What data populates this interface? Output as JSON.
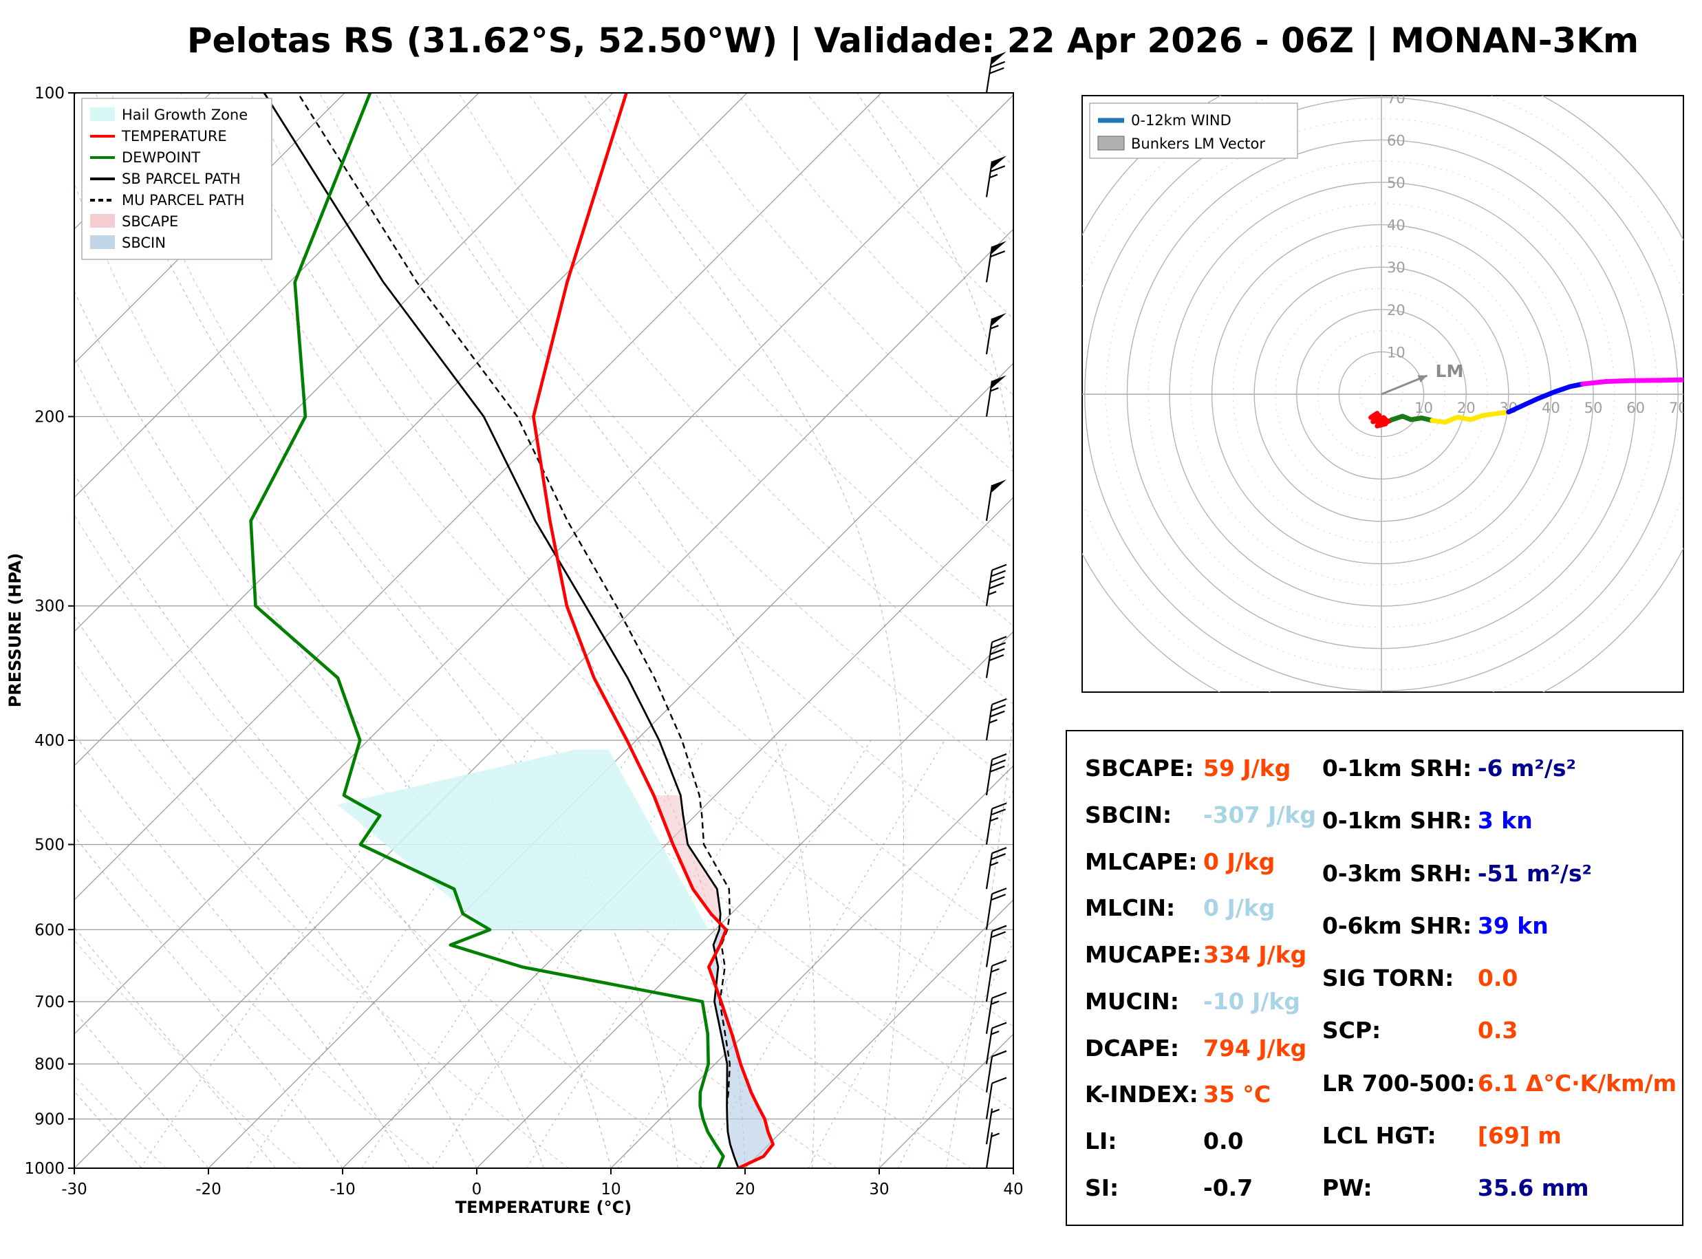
{
  "title": "Pelotas RS (31.62°S, 52.50°W) | Validade: 22 Apr 2026 - 06Z | MONAN-3Km",
  "colors": {
    "temperature": "#ff0000",
    "dewpoint": "#008000",
    "parcel": "#000000",
    "hail_zone": "#d4f6f6",
    "sbcape_fill": "#f3c6cd",
    "sbcin_fill": "#b9d0e6",
    "orange_value": "#ff4500",
    "lightblue_value": "#a8d4e6",
    "darkblue_value": "#00008b",
    "blue_value": "#0000ff",
    "grid": "#999999"
  },
  "chart_data": [
    {
      "type": "line",
      "name": "skewt-sounding",
      "title": "Pelotas RS (31.62°S, 52.50°W) | Validade: 22 Apr 2026 - 06Z | MONAN-3Km",
      "xlabel": "TEMPERATURE (°C)",
      "ylabel": "PRESSURE (HPA)",
      "xlim": [
        -30,
        40
      ],
      "plim": [
        100,
        1000
      ],
      "x_ticks": [
        -30,
        -20,
        -10,
        0,
        10,
        20,
        30,
        40
      ],
      "p_ticks": [
        100,
        200,
        300,
        400,
        500,
        600,
        700,
        800,
        900,
        1000
      ],
      "skew_deg": 45,
      "grid": true,
      "legend_position": "upper left",
      "legend": [
        {
          "label": "Hail Growth Zone",
          "type": "patch",
          "color": "#d4f6f6"
        },
        {
          "label": "TEMPERATURE",
          "type": "line",
          "color": "#ff0000"
        },
        {
          "label": "DEWPOINT",
          "type": "line",
          "color": "#008000"
        },
        {
          "label": "SB PARCEL PATH",
          "type": "line",
          "color": "#000000"
        },
        {
          "label": "MU PARCEL PATH",
          "type": "dashed",
          "color": "#000000"
        },
        {
          "label": "SBCAPE",
          "type": "patch",
          "color": "#f3c6cd"
        },
        {
          "label": "SBCIN",
          "type": "patch",
          "color": "#b9d0e6"
        }
      ],
      "pressure": [
        1000,
        975,
        950,
        925,
        900,
        875,
        850,
        800,
        750,
        700,
        650,
        620,
        600,
        580,
        550,
        500,
        470,
        450,
        400,
        350,
        300,
        250,
        200,
        150,
        100
      ],
      "temperature": [
        19.5,
        20.5,
        20.3,
        19.0,
        17.8,
        16.3,
        14.8,
        11.9,
        9.0,
        5.8,
        2.3,
        1.5,
        0.8,
        -1.5,
        -4.7,
        -9.5,
        -12.5,
        -14.6,
        -20.7,
        -27.8,
        -35.2,
        -42.8,
        -51.8,
        -59.3,
        -69.0
      ],
      "dewpoint": [
        18.0,
        17.5,
        16.0,
        14.5,
        13.2,
        12.0,
        11.0,
        9.5,
        7.2,
        4.4,
        -11.6,
        -18.6,
        -16.8,
        -20.0,
        -22.5,
        -32.8,
        -33.5,
        -37.7,
        -40.6,
        -46.9,
        -58.4,
        -65.1,
        -68.8,
        -79.6,
        -88.1
      ],
      "sb_parcel": [
        19.5,
        18.3,
        17.1,
        16.0,
        15.0,
        14.0,
        13.0,
        10.9,
        8.2,
        5.3,
        3.0,
        1.0,
        0.3,
        -0.8,
        -2.9,
        -8.4,
        -10.9,
        -12.6,
        -18.3,
        -25.3,
        -33.8,
        -43.9,
        -55.5,
        -73.0,
        -96.0
      ],
      "mu_parcel": [
        19.5,
        18.3,
        17.1,
        16.0,
        15.0,
        14.0,
        13.1,
        11.1,
        8.5,
        5.7,
        3.5,
        1.6,
        0.9,
        -0.1,
        -2.0,
        -7.2,
        -9.5,
        -11.2,
        -16.6,
        -23.3,
        -31.5,
        -41.5,
        -53.0,
        -70.5,
        -93.5
      ],
      "hail_growth_zone_pT": [
        [
          459,
          -37.5
        ],
        [
          408,
          -23.9
        ],
        [
          408,
          -21.4
        ],
        [
          600,
          -0.5
        ],
        [
          600,
          -16.9
        ]
      ],
      "wind_barbs": [
        {
          "p": 1000,
          "speed_kt": 5,
          "dir_deg": 100
        },
        {
          "p": 950,
          "speed_kt": 8,
          "dir_deg": 120
        },
        {
          "p": 900,
          "speed_kt": 10,
          "dir_deg": 160
        },
        {
          "p": 850,
          "speed_kt": 12,
          "dir_deg": 200
        },
        {
          "p": 800,
          "speed_kt": 15,
          "dir_deg": 230
        },
        {
          "p": 750,
          "speed_kt": 15,
          "dir_deg": 250
        },
        {
          "p": 700,
          "speed_kt": 18,
          "dir_deg": 260
        },
        {
          "p": 650,
          "speed_kt": 20,
          "dir_deg": 265
        },
        {
          "p": 600,
          "speed_kt": 22,
          "dir_deg": 270
        },
        {
          "p": 550,
          "speed_kt": 25,
          "dir_deg": 270
        },
        {
          "p": 500,
          "speed_kt": 28,
          "dir_deg": 272
        },
        {
          "p": 450,
          "speed_kt": 32,
          "dir_deg": 274
        },
        {
          "p": 400,
          "speed_kt": 35,
          "dir_deg": 275
        },
        {
          "p": 350,
          "speed_kt": 40,
          "dir_deg": 276
        },
        {
          "p": 300,
          "speed_kt": 45,
          "dir_deg": 277
        },
        {
          "p": 250,
          "speed_kt": 50,
          "dir_deg": 278
        },
        {
          "p": 200,
          "speed_kt": 55,
          "dir_deg": 278
        },
        {
          "p": 175,
          "speed_kt": 58,
          "dir_deg": 277
        },
        {
          "p": 150,
          "speed_kt": 60,
          "dir_deg": 276
        },
        {
          "p": 125,
          "speed_kt": 65,
          "dir_deg": 274
        },
        {
          "p": 100,
          "speed_kt": 70,
          "dir_deg": 272
        }
      ]
    },
    {
      "type": "line",
      "name": "hodograph",
      "rings_kt": [
        10,
        20,
        30,
        40,
        50,
        60,
        70,
        80
      ],
      "ring_labels": [
        10,
        20,
        30,
        40,
        50,
        60,
        70
      ],
      "legend": [
        {
          "label": "0-12km WIND",
          "type": "line",
          "color": "#1f77b4"
        },
        {
          "label": "Bunkers LM Vector",
          "type": "patch",
          "color": "#b0b0b0"
        }
      ],
      "lm_label": "LM",
      "lm_vector_uv": [
        10.8,
        4.4
      ],
      "segments": [
        {
          "color": "#ff0000",
          "points": [
            [
              -1,
              -4.5
            ],
            [
              -2.5,
              -5.5
            ],
            [
              -0.5,
              -5
            ],
            [
              -2,
              -6.5
            ],
            [
              0,
              -6
            ],
            [
              -1,
              -7.5
            ],
            [
              1,
              -7
            ],
            [
              0.5,
              -5.5
            ],
            [
              1.5,
              -6.5
            ],
            [
              2.5,
              -6
            ]
          ]
        },
        {
          "color": "#1a7a1a",
          "points": [
            [
              2.5,
              -6
            ],
            [
              5,
              -5.2
            ],
            [
              7,
              -6
            ],
            [
              9.5,
              -5.6
            ],
            [
              12,
              -6.2
            ]
          ]
        },
        {
          "color": "#ffe800",
          "points": [
            [
              12,
              -6.2
            ],
            [
              15,
              -6.6
            ],
            [
              18,
              -5.4
            ],
            [
              21,
              -6
            ],
            [
              24,
              -5
            ],
            [
              27,
              -4.6
            ],
            [
              30,
              -4.2
            ]
          ]
        },
        {
          "color": "#0000ff",
          "points": [
            [
              30,
              -4.2
            ],
            [
              33.5,
              -2.6
            ],
            [
              37,
              -1
            ],
            [
              41,
              0.6
            ],
            [
              44.5,
              1.8
            ],
            [
              47.5,
              2.4
            ]
          ]
        },
        {
          "color": "#ff00ff",
          "points": [
            [
              47.5,
              2.4
            ],
            [
              53,
              3
            ],
            [
              59,
              3.2
            ],
            [
              66,
              3.3
            ],
            [
              72,
              3.4
            ],
            [
              77,
              3.5
            ]
          ]
        }
      ]
    }
  ],
  "stats": {
    "left": [
      {
        "label": "SBCAPE:",
        "value": "59 J/kg",
        "color": "#ff4500"
      },
      {
        "label": "SBCIN:",
        "value": "-307 J/kg",
        "color": "#a8d4e6"
      },
      {
        "label": "MLCAPE:",
        "value": "0 J/kg",
        "color": "#ff4500"
      },
      {
        "label": "MLCIN:",
        "value": "0 J/kg",
        "color": "#a8d4e6"
      },
      {
        "label": "MUCAPE:",
        "value": "334 J/kg",
        "color": "#ff4500"
      },
      {
        "label": "MUCIN:",
        "value": "-10 J/kg",
        "color": "#a8d4e6"
      },
      {
        "label": "DCAPE:",
        "value": "794 J/kg",
        "color": "#ff4500"
      },
      {
        "label": "K-INDEX:",
        "value": "35 °C",
        "color": "#ff4500"
      },
      {
        "label": "LI:",
        "value": "0.0",
        "color": "#000000"
      },
      {
        "label": "SI:",
        "value": "-0.7",
        "color": "#000000"
      }
    ],
    "right": [
      {
        "label": "0-1km SRH:",
        "value": "-6 m²/s²",
        "color": "#00008b"
      },
      {
        "label": "0-1km SHR:",
        "value": "3 kn",
        "color": "#0000ff"
      },
      {
        "label": "0-3km SRH:",
        "value": "-51 m²/s²",
        "color": "#00008b"
      },
      {
        "label": "0-6km SHR:",
        "value": "39 kn",
        "color": "#0000ff"
      },
      {
        "label": "SIG TORN:",
        "value": "0.0",
        "color": "#ff4500"
      },
      {
        "label": "SCP:",
        "value": "0.3",
        "color": "#ff4500"
      },
      {
        "label": "LR 700-500:",
        "value": "6.1 Δ°C·K/km/m",
        "color": "#ff4500"
      },
      {
        "label": "LCL HGT:",
        "value": "[69] m",
        "color": "#ff4500"
      },
      {
        "label": "PW:",
        "value": "35.6 mm",
        "color": "#00008b"
      }
    ]
  }
}
